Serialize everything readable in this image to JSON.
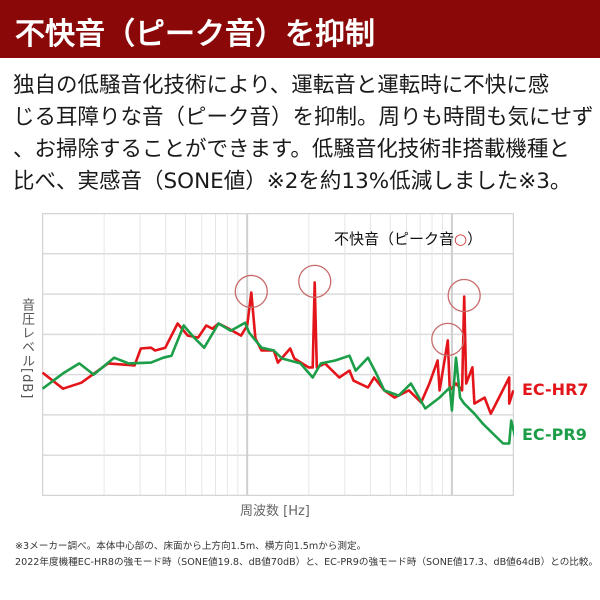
{
  "header": {
    "title": "不快音（ピーク音）を抑制"
  },
  "intro_lines": [
    "独自の低騒音化技術により、運転音と運転時に不快に感",
    "じる耳障りな音（ピーク音）を抑制。周りも時間も気にせず",
    "、お掃除することができます。低騒音化技術非搭載機種と",
    "比べ、実感音（SONE値）※2を約13%低減しました※3。"
  ],
  "footnotes": [
    "※3メーカー調べ。本体中心部の、床面から上方向1.5m、横方向1.5mから測定。",
    "2022年度機種EC-HR8の強モード時（SONE値19.8、dB値70dB）と、EC-PR9の強モード時（SONE値17.3、dB値64dB）との比較。"
  ],
  "colors": {
    "header": "#8a0808",
    "red": "#e3151a",
    "green": "#1c9e48",
    "circle": "#c86a6a"
  },
  "chart_data": {
    "type": "line",
    "xlabel": "周波数 [Hz]",
    "ylabel": "音圧レベル[dB]",
    "x_scale": "log (decades from axis start)",
    "xlim": [
      0,
      2.301
    ],
    "ylim": [
      0,
      7
    ],
    "grid": true,
    "legend": {
      "prefix": "不快音（ピーク音",
      "mark": "○",
      "suffix": "）",
      "placement": "top-right"
    },
    "series": [
      {
        "name": "EC-HR7",
        "color": "#e3151a",
        "points": [
          [
            0.0,
            3.05
          ],
          [
            0.1,
            2.65
          ],
          [
            0.19,
            2.8
          ],
          [
            0.32,
            3.28
          ],
          [
            0.45,
            3.23
          ],
          [
            0.48,
            3.65
          ],
          [
            0.53,
            3.67
          ],
          [
            0.55,
            3.6
          ],
          [
            0.6,
            3.67
          ],
          [
            0.66,
            4.27
          ],
          [
            0.71,
            3.97
          ],
          [
            0.76,
            3.92
          ],
          [
            0.8,
            4.22
          ],
          [
            0.83,
            4.14
          ],
          [
            0.86,
            4.27
          ],
          [
            0.91,
            4.14
          ],
          [
            0.97,
            3.97
          ],
          [
            1.0,
            4.22
          ],
          [
            1.02,
            5.04
          ],
          [
            1.04,
            3.9
          ],
          [
            1.07,
            3.6
          ],
          [
            1.13,
            3.6
          ],
          [
            1.15,
            3.3
          ],
          [
            1.21,
            3.65
          ],
          [
            1.23,
            3.4
          ],
          [
            1.3,
            3.18
          ],
          [
            1.32,
            3.18
          ],
          [
            1.33,
            5.29
          ],
          [
            1.34,
            3.18
          ],
          [
            1.38,
            3.28
          ],
          [
            1.45,
            2.93
          ],
          [
            1.5,
            3.1
          ],
          [
            1.52,
            2.85
          ],
          [
            1.59,
            2.68
          ],
          [
            1.62,
            2.93
          ],
          [
            1.67,
            2.61
          ],
          [
            1.72,
            2.43
          ],
          [
            1.79,
            2.61
          ],
          [
            1.85,
            2.31
          ],
          [
            1.89,
            2.78
          ],
          [
            1.93,
            3.35
          ],
          [
            1.94,
            2.61
          ],
          [
            1.98,
            3.85
          ],
          [
            1.99,
            2.61
          ],
          [
            2.02,
            2.78
          ],
          [
            2.05,
            2.61
          ],
          [
            2.06,
            4.94
          ],
          [
            2.07,
            2.78
          ],
          [
            2.1,
            3.18
          ],
          [
            2.11,
            2.28
          ],
          [
            2.16,
            2.43
          ],
          [
            2.19,
            2.03
          ],
          [
            2.23,
            2.43
          ],
          [
            2.28,
            2.93
          ],
          [
            2.28,
            2.28
          ],
          [
            2.3,
            2.61
          ]
        ]
      },
      {
        "name": "EC-PR9",
        "color": "#1c9e48",
        "points": [
          [
            0.0,
            2.65
          ],
          [
            0.1,
            3.03
          ],
          [
            0.18,
            3.28
          ],
          [
            0.25,
            3.0
          ],
          [
            0.35,
            3.42
          ],
          [
            0.42,
            3.28
          ],
          [
            0.53,
            3.3
          ],
          [
            0.59,
            3.42
          ],
          [
            0.63,
            3.47
          ],
          [
            0.69,
            4.22
          ],
          [
            0.74,
            3.92
          ],
          [
            0.79,
            3.67
          ],
          [
            0.86,
            4.27
          ],
          [
            0.92,
            4.09
          ],
          [
            0.99,
            4.29
          ],
          [
            1.01,
            4.04
          ],
          [
            1.07,
            3.67
          ],
          [
            1.13,
            3.6
          ],
          [
            1.17,
            3.4
          ],
          [
            1.26,
            3.28
          ],
          [
            1.32,
            2.93
          ],
          [
            1.36,
            3.28
          ],
          [
            1.43,
            3.35
          ],
          [
            1.5,
            3.47
          ],
          [
            1.53,
            3.1
          ],
          [
            1.59,
            3.42
          ],
          [
            1.63,
            3.03
          ],
          [
            1.67,
            2.61
          ],
          [
            1.74,
            2.48
          ],
          [
            1.8,
            2.78
          ],
          [
            1.87,
            2.16
          ],
          [
            1.94,
            2.43
          ],
          [
            1.99,
            2.68
          ],
          [
            2.0,
            2.11
          ],
          [
            2.02,
            3.42
          ],
          [
            2.04,
            2.43
          ],
          [
            2.06,
            2.28
          ],
          [
            2.11,
            2.03
          ],
          [
            2.15,
            1.79
          ],
          [
            2.2,
            1.54
          ],
          [
            2.25,
            1.29
          ],
          [
            2.28,
            1.29
          ],
          [
            2.29,
            1.86
          ],
          [
            2.31,
            1.44
          ]
        ]
      }
    ],
    "peak_annotations": [
      [
        1.02,
        5.04
      ],
      [
        1.33,
        5.29
      ],
      [
        1.98,
        3.85
      ],
      [
        2.06,
        4.94
      ]
    ]
  }
}
